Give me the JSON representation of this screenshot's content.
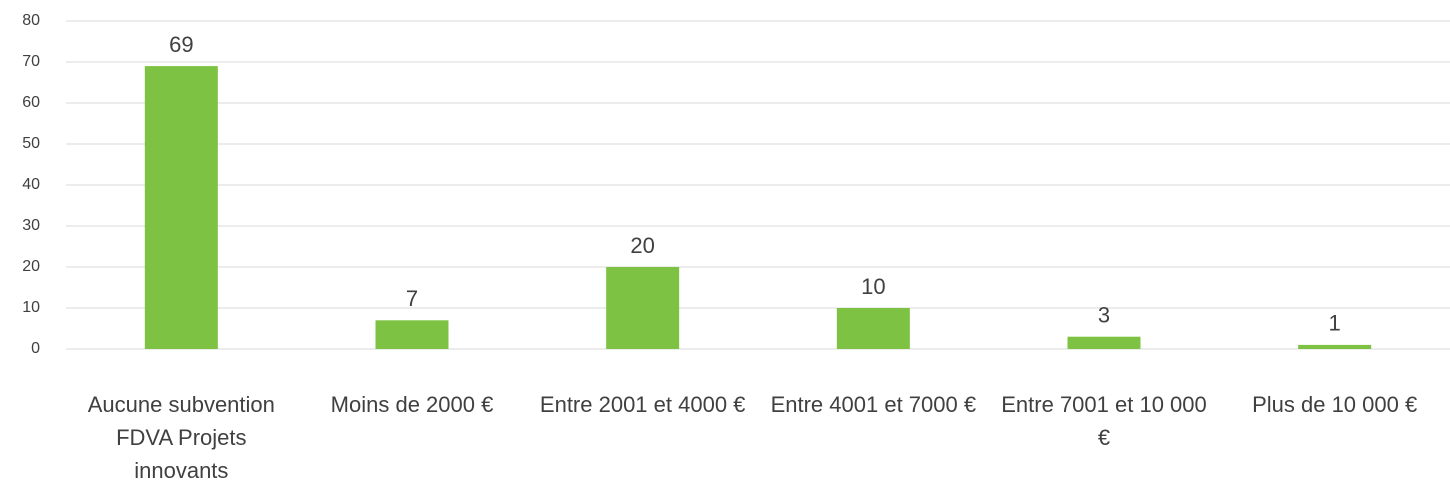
{
  "chart_data": {
    "type": "bar",
    "categories": [
      "Aucune subvention FDVA Projets innovants",
      "Moins de 2000 €",
      "Entre 2001 et 4000 €",
      "Entre 4001 et 7000 €",
      "Entre 7001 et 10 000 €",
      "Plus de 10 000 €"
    ],
    "values": [
      69,
      7,
      20,
      10,
      3,
      1
    ],
    "color": "#7dc242",
    "ylim": [
      0,
      80
    ],
    "yticks": [
      0,
      10,
      20,
      30,
      40,
      50,
      60,
      70,
      80
    ],
    "grid": true
  }
}
